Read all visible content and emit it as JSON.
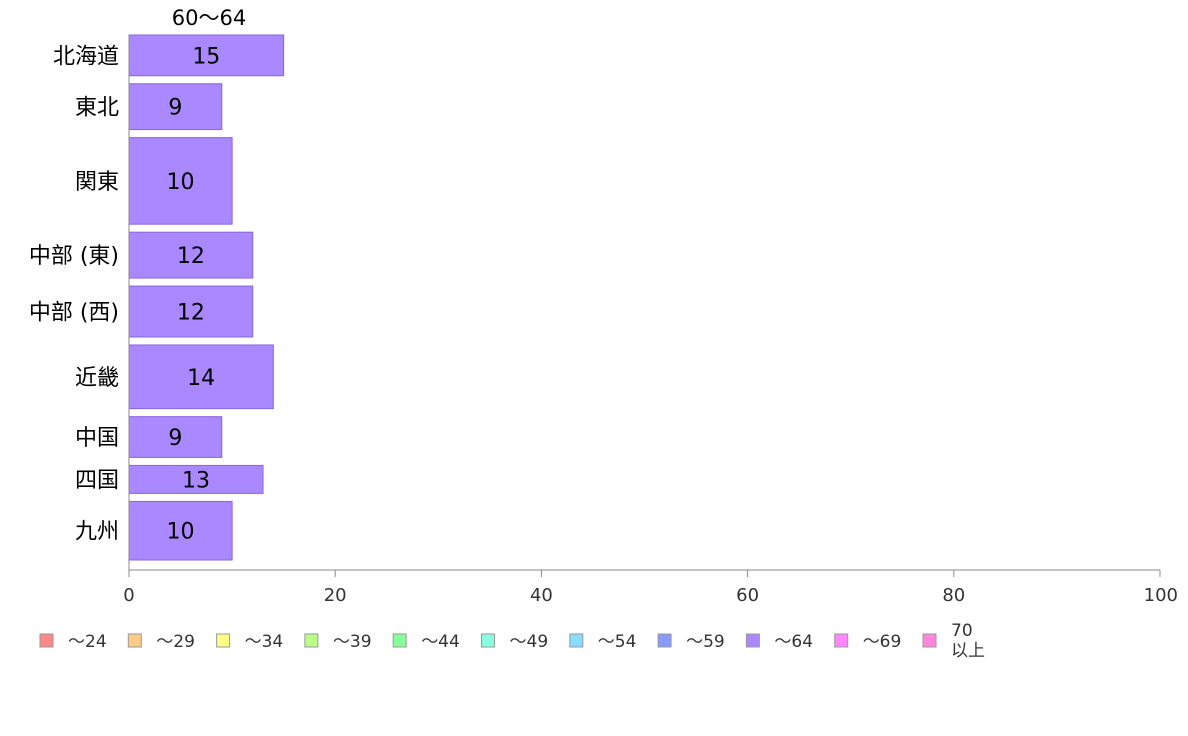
{
  "chart_data": {
    "type": "bar",
    "orientation": "horizontal",
    "title": "60～64",
    "categories": [
      "北海道",
      "東北",
      "関東",
      "中部 (東)",
      "中部 (西)",
      "近畿",
      "中国",
      "四国",
      "九州"
    ],
    "values": [
      15,
      9,
      10,
      12,
      12,
      14,
      9,
      13,
      10
    ],
    "value_labels": [
      "15",
      "9",
      "10",
      "12",
      "12",
      "14",
      "9",
      "13",
      "10"
    ],
    "relative_bar_thickness": [
      0.8,
      0.9,
      1.7,
      0.9,
      1.0,
      1.25,
      0.8,
      0.55,
      1.15
    ],
    "xlim": [
      0,
      100
    ],
    "xticks": [
      0,
      20,
      40,
      60,
      80,
      100
    ],
    "xtick_labels": [
      "0",
      "20",
      "40",
      "60",
      "80",
      "100"
    ],
    "xlabel": "",
    "ylabel": "",
    "bar_color": "#aa88ff",
    "bar_stroke": "#8866dd",
    "legend_position": "bottom",
    "legend": [
      {
        "label": "～24",
        "color": "#ff8888"
      },
      {
        "label": "～29",
        "color": "#ffcc88"
      },
      {
        "label": "～34",
        "color": "#ffff88"
      },
      {
        "label": "～39",
        "color": "#bbff88"
      },
      {
        "label": "～44",
        "color": "#88ff99"
      },
      {
        "label": "～49",
        "color": "#88ffdd"
      },
      {
        "label": "～54",
        "color": "#88ddff"
      },
      {
        "label": "～59",
        "color": "#8899ff"
      },
      {
        "label": "～64",
        "color": "#aa88ff"
      },
      {
        "label": "～69",
        "color": "#ff88ff"
      },
      {
        "label": "70\n以上",
        "color": "#ff88dd"
      }
    ]
  }
}
